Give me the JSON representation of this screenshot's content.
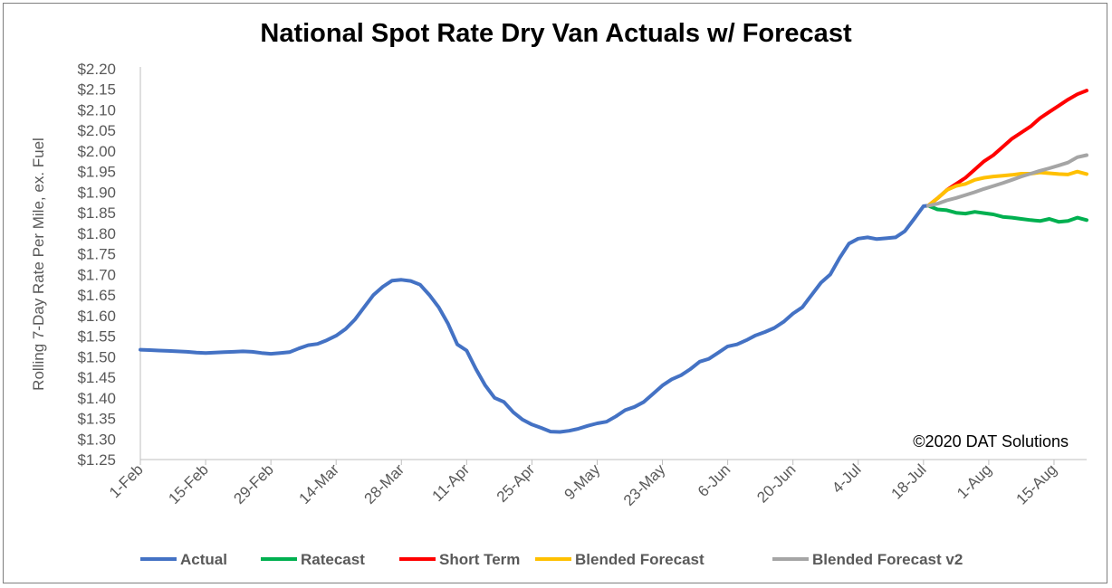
{
  "chart_data": {
    "type": "line",
    "title": "National Spot Rate Dry Van Actuals w/ Forecast",
    "ylabel": "Rolling 7-Day Rate Per Mile, ex. Fuel",
    "xlabel": "",
    "annotation": "©2020 DAT Solutions",
    "ylim": [
      1.25,
      2.2
    ],
    "yticks": [
      "$1.25",
      "$1.30",
      "$1.35",
      "$1.40",
      "$1.45",
      "$1.50",
      "$1.55",
      "$1.60",
      "$1.65",
      "$1.70",
      "$1.75",
      "$1.80",
      "$1.85",
      "$1.90",
      "$1.95",
      "$2.00",
      "$2.05",
      "$2.10",
      "$2.15",
      "$2.20"
    ],
    "x_start": "1-Feb",
    "x_day_count": 203,
    "xtick_labels": [
      "1-Feb",
      "15-Feb",
      "29-Feb",
      "14-Mar",
      "28-Mar",
      "11-Apr",
      "25-Apr",
      "9-May",
      "23-May",
      "6-Jun",
      "20-Jun",
      "4-Jul",
      "18-Jul",
      "1-Aug",
      "15-Aug"
    ],
    "legend_position": "bottom",
    "grid": false,
    "series": [
      {
        "name": "Actual",
        "color": "#4472c4",
        "points": [
          [
            "1-Feb",
            1.517
          ],
          [
            "3-Feb",
            1.516
          ],
          [
            "5-Feb",
            1.515
          ],
          [
            "7-Feb",
            1.514
          ],
          [
            "9-Feb",
            1.513
          ],
          [
            "11-Feb",
            1.512
          ],
          [
            "13-Feb",
            1.51
          ],
          [
            "15-Feb",
            1.509
          ],
          [
            "17-Feb",
            1.51
          ],
          [
            "19-Feb",
            1.511
          ],
          [
            "21-Feb",
            1.512
          ],
          [
            "23-Feb",
            1.513
          ],
          [
            "25-Feb",
            1.512
          ],
          [
            "27-Feb",
            1.509
          ],
          [
            "29-Feb",
            1.507
          ],
          [
            "2-Mar",
            1.509
          ],
          [
            "4-Mar",
            1.511
          ],
          [
            "6-Mar",
            1.52
          ],
          [
            "8-Mar",
            1.528
          ],
          [
            "10-Mar",
            1.531
          ],
          [
            "12-Mar",
            1.54
          ],
          [
            "14-Mar",
            1.551
          ],
          [
            "16-Mar",
            1.567
          ],
          [
            "18-Mar",
            1.59
          ],
          [
            "20-Mar",
            1.62
          ],
          [
            "22-Mar",
            1.65
          ],
          [
            "24-Mar",
            1.67
          ],
          [
            "26-Mar",
            1.685
          ],
          [
            "28-Mar",
            1.687
          ],
          [
            "30-Mar",
            1.684
          ],
          [
            "1-Apr",
            1.675
          ],
          [
            "3-Apr",
            1.65
          ],
          [
            "5-Apr",
            1.62
          ],
          [
            "7-Apr",
            1.58
          ],
          [
            "9-Apr",
            1.53
          ],
          [
            "11-Apr",
            1.515
          ],
          [
            "13-Apr",
            1.47
          ],
          [
            "15-Apr",
            1.43
          ],
          [
            "17-Apr",
            1.4
          ],
          [
            "19-Apr",
            1.39
          ],
          [
            "21-Apr",
            1.365
          ],
          [
            "23-Apr",
            1.347
          ],
          [
            "25-Apr",
            1.335
          ],
          [
            "27-Apr",
            1.327
          ],
          [
            "29-Apr",
            1.318
          ],
          [
            "1-May",
            1.317
          ],
          [
            "3-May",
            1.32
          ],
          [
            "5-May",
            1.325
          ],
          [
            "7-May",
            1.332
          ],
          [
            "9-May",
            1.338
          ],
          [
            "11-May",
            1.342
          ],
          [
            "13-May",
            1.355
          ],
          [
            "15-May",
            1.37
          ],
          [
            "17-May",
            1.378
          ],
          [
            "19-May",
            1.39
          ],
          [
            "21-May",
            1.41
          ],
          [
            "23-May",
            1.43
          ],
          [
            "25-May",
            1.445
          ],
          [
            "27-May",
            1.455
          ],
          [
            "29-May",
            1.47
          ],
          [
            "31-May",
            1.488
          ],
          [
            "2-Jun",
            1.495
          ],
          [
            "4-Jun",
            1.51
          ],
          [
            "6-Jun",
            1.525
          ],
          [
            "8-Jun",
            1.53
          ],
          [
            "10-Jun",
            1.54
          ],
          [
            "12-Jun",
            1.552
          ],
          [
            "14-Jun",
            1.56
          ],
          [
            "16-Jun",
            1.57
          ],
          [
            "18-Jun",
            1.585
          ],
          [
            "20-Jun",
            1.605
          ],
          [
            "22-Jun",
            1.62
          ],
          [
            "24-Jun",
            1.65
          ],
          [
            "26-Jun",
            1.68
          ],
          [
            "28-Jun",
            1.7
          ],
          [
            "30-Jun",
            1.74
          ],
          [
            "2-Jul",
            1.775
          ],
          [
            "4-Jul",
            1.787
          ],
          [
            "6-Jul",
            1.79
          ],
          [
            "8-Jul",
            1.786
          ],
          [
            "10-Jul",
            1.788
          ],
          [
            "12-Jul",
            1.79
          ],
          [
            "14-Jul",
            1.805
          ],
          [
            "16-Jul",
            1.835
          ],
          [
            "18-Jul",
            1.866
          ],
          [
            "19-Jul",
            1.867
          ]
        ]
      },
      {
        "name": "Ratecast",
        "color": "#00b050",
        "points": [
          [
            "19-Jul",
            1.867
          ],
          [
            "21-Jul",
            1.858
          ],
          [
            "23-Jul",
            1.856
          ],
          [
            "25-Jul",
            1.85
          ],
          [
            "27-Jul",
            1.848
          ],
          [
            "29-Jul",
            1.852
          ],
          [
            "31-Jul",
            1.849
          ],
          [
            "2-Aug",
            1.846
          ],
          [
            "4-Aug",
            1.84
          ],
          [
            "6-Aug",
            1.838
          ],
          [
            "8-Aug",
            1.835
          ],
          [
            "10-Aug",
            1.832
          ],
          [
            "12-Aug",
            1.83
          ],
          [
            "14-Aug",
            1.835
          ],
          [
            "16-Aug",
            1.828
          ],
          [
            "18-Aug",
            1.83
          ],
          [
            "20-Aug",
            1.838
          ],
          [
            "22-Aug",
            1.832
          ]
        ]
      },
      {
        "name": "Short Term",
        "color": "#ff0000",
        "points": [
          [
            "19-Jul",
            1.867
          ],
          [
            "21-Jul",
            1.885
          ],
          [
            "23-Jul",
            1.905
          ],
          [
            "25-Jul",
            1.92
          ],
          [
            "27-Jul",
            1.935
          ],
          [
            "29-Jul",
            1.955
          ],
          [
            "31-Jul",
            1.975
          ],
          [
            "2-Aug",
            1.99
          ],
          [
            "4-Aug",
            2.01
          ],
          [
            "6-Aug",
            2.03
          ],
          [
            "8-Aug",
            2.045
          ],
          [
            "10-Aug",
            2.06
          ],
          [
            "12-Aug",
            2.08
          ],
          [
            "14-Aug",
            2.095
          ],
          [
            "16-Aug",
            2.11
          ],
          [
            "18-Aug",
            2.125
          ],
          [
            "20-Aug",
            2.138
          ],
          [
            "22-Aug",
            2.147
          ]
        ]
      },
      {
        "name": "Blended Forecast",
        "color": "#ffc000",
        "points": [
          [
            "19-Jul",
            1.867
          ],
          [
            "21-Jul",
            1.885
          ],
          [
            "23-Jul",
            1.905
          ],
          [
            "25-Jul",
            1.915
          ],
          [
            "27-Jul",
            1.92
          ],
          [
            "29-Jul",
            1.93
          ],
          [
            "31-Jul",
            1.935
          ],
          [
            "2-Aug",
            1.938
          ],
          [
            "4-Aug",
            1.94
          ],
          [
            "6-Aug",
            1.942
          ],
          [
            "8-Aug",
            1.945
          ],
          [
            "10-Aug",
            1.945
          ],
          [
            "12-Aug",
            1.948
          ],
          [
            "14-Aug",
            1.946
          ],
          [
            "16-Aug",
            1.944
          ],
          [
            "18-Aug",
            1.943
          ],
          [
            "20-Aug",
            1.95
          ],
          [
            "22-Aug",
            1.944
          ]
        ]
      },
      {
        "name": "Blended Forecast v2",
        "color": "#a5a5a5",
        "points": [
          [
            "19-Jul",
            1.867
          ],
          [
            "21-Jul",
            1.872
          ],
          [
            "23-Jul",
            1.88
          ],
          [
            "25-Jul",
            1.886
          ],
          [
            "27-Jul",
            1.893
          ],
          [
            "29-Jul",
            1.9
          ],
          [
            "31-Jul",
            1.908
          ],
          [
            "2-Aug",
            1.915
          ],
          [
            "4-Aug",
            1.922
          ],
          [
            "6-Aug",
            1.93
          ],
          [
            "8-Aug",
            1.938
          ],
          [
            "10-Aug",
            1.945
          ],
          [
            "12-Aug",
            1.952
          ],
          [
            "14-Aug",
            1.958
          ],
          [
            "16-Aug",
            1.965
          ],
          [
            "18-Aug",
            1.972
          ],
          [
            "20-Aug",
            1.985
          ],
          [
            "22-Aug",
            1.99
          ]
        ]
      }
    ]
  }
}
